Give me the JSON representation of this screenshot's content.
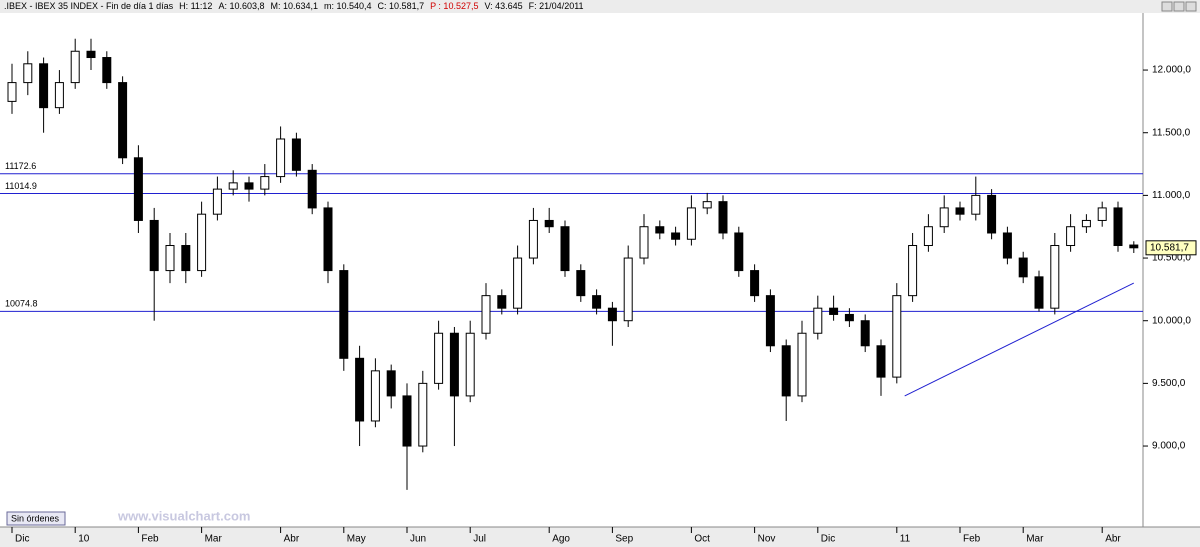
{
  "header": {
    "symbol": ".IBEX - IBEX 35 INDEX - Fin de día 1 días",
    "fields": [
      "H: 11:12",
      "A: 10.603,8",
      "M: 10.634,1",
      "m: 10.540,4",
      "C: 10.581,7",
      "P : 10.527,5",
      "V: 43.645",
      "F: 21/04/2011"
    ]
  },
  "footer": {
    "button": "Sin órdenes",
    "watermark": "www.visualchart.com"
  },
  "chart_data": {
    "type": "candlestick",
    "categories": [
      "Dic",
      null,
      null,
      null,
      "10",
      null,
      null,
      null,
      "Feb",
      null,
      null,
      null,
      "Mar",
      null,
      null,
      null,
      null,
      "Abr",
      null,
      null,
      null,
      "May",
      null,
      null,
      null,
      "Jun",
      null,
      null,
      null,
      "Jul",
      null,
      null,
      null,
      null,
      "Ago",
      null,
      null,
      null,
      "Sep",
      null,
      null,
      null,
      null,
      "Oct",
      null,
      null,
      null,
      "Nov",
      null,
      null,
      null,
      "Dic",
      null,
      null,
      null,
      null,
      "11",
      null,
      null,
      null,
      "Feb",
      null,
      null,
      null,
      "Mar",
      null,
      null,
      null,
      null,
      "Abr",
      null,
      null
    ],
    "open": [
      11750,
      11900,
      12050,
      11700,
      11900,
      12150,
      12100,
      11900,
      11300,
      10800,
      10400,
      10600,
      10400,
      10850,
      11050,
      11100,
      11050,
      11150,
      11450,
      11200,
      10900,
      10400,
      9700,
      9200,
      9600,
      9400,
      9000,
      9500,
      9900,
      9400,
      9900,
      10200,
      10100,
      10500,
      10800,
      10750,
      10400,
      10200,
      10100,
      10000,
      10500,
      10750,
      10700,
      10650,
      10900,
      10950,
      10700,
      10400,
      10200,
      9800,
      9400,
      9900,
      10100,
      10050,
      10000,
      9800,
      9550,
      10200,
      10600,
      10750,
      10900,
      10850,
      11000,
      10700,
      10500,
      10350,
      10100,
      10600,
      10750,
      10800,
      10900,
      10603.8
    ],
    "high": [
      12050,
      12150,
      12100,
      12000,
      12250,
      12250,
      12150,
      11950,
      11400,
      10900,
      10700,
      10700,
      10950,
      11150,
      11200,
      11150,
      11250,
      11550,
      11500,
      11250,
      10950,
      10450,
      9800,
      9700,
      9650,
      9500,
      9600,
      10000,
      9950,
      10000,
      10300,
      10250,
      10600,
      10900,
      10900,
      10800,
      10450,
      10250,
      10150,
      10600,
      10850,
      10800,
      10750,
      11000,
      11020,
      11000,
      10750,
      10450,
      10250,
      9850,
      10000,
      10200,
      10200,
      10100,
      10050,
      9850,
      10300,
      10700,
      10850,
      11000,
      10950,
      11150,
      11050,
      10750,
      10550,
      10400,
      10700,
      10850,
      10850,
      10950,
      10950,
      10634.1
    ],
    "low": [
      11650,
      11800,
      11500,
      11650,
      11850,
      12000,
      11850,
      11250,
      10700,
      10000,
      10300,
      10300,
      10350,
      10800,
      11000,
      10950,
      11000,
      11100,
      11150,
      10850,
      10300,
      9600,
      9000,
      9150,
      9300,
      8650,
      8950,
      9450,
      9000,
      9350,
      9850,
      10050,
      10050,
      10450,
      10700,
      10350,
      10150,
      10050,
      9800,
      9950,
      10450,
      10650,
      10600,
      10600,
      10850,
      10650,
      10350,
      10150,
      9750,
      9200,
      9350,
      9850,
      10000,
      9950,
      9750,
      9400,
      9500,
      10150,
      10550,
      10700,
      10800,
      10800,
      10650,
      10450,
      10300,
      10074,
      10050,
      10550,
      10700,
      10750,
      10550,
      10540.4
    ],
    "close": [
      11900,
      12050,
      11700,
      11900,
      12150,
      12100,
      11900,
      11300,
      10800,
      10400,
      10600,
      10400,
      10850,
      11050,
      11100,
      11050,
      11150,
      11450,
      11200,
      10900,
      10400,
      9700,
      9200,
      9600,
      9400,
      9000,
      9500,
      9900,
      9400,
      9900,
      10200,
      10100,
      10500,
      10800,
      10750,
      10400,
      10200,
      10100,
      10000,
      10500,
      10750,
      10700,
      10650,
      10900,
      10950,
      10700,
      10400,
      10200,
      9800,
      9400,
      9900,
      10100,
      10050,
      10000,
      9800,
      9550,
      10200,
      10600,
      10750,
      10900,
      10850,
      11000,
      10700,
      10500,
      10350,
      10100,
      10600,
      10750,
      10800,
      10900,
      10600,
      10581.7
    ],
    "ylim": [
      8354,
      12559
    ],
    "yticks": [
      {
        "value": 9000,
        "label": "9.000,0"
      },
      {
        "value": 9500,
        "label": "9.500,0"
      },
      {
        "value": 10000,
        "label": "10.000,0"
      },
      {
        "value": 10500,
        "label": "10.500,0"
      },
      {
        "value": 11000,
        "label": "11.000,0"
      },
      {
        "value": 11500,
        "label": "11.500,0"
      },
      {
        "value": 12000,
        "label": "12.000,0"
      }
    ],
    "hlines": [
      11172.6,
      11014.9,
      10074.8
    ],
    "trendline": {
      "x": [
        56.5,
        71
      ],
      "y": [
        9400,
        10300
      ]
    },
    "last_price": {
      "value": 10581.7,
      "label": "10.581,7"
    },
    "line_color": "#2020d0"
  }
}
